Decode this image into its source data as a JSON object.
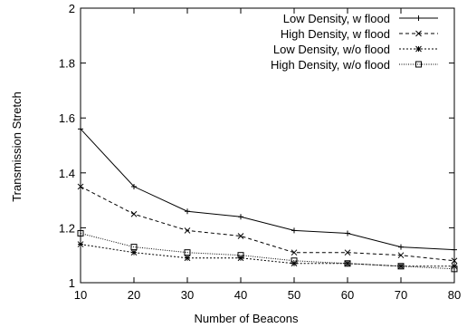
{
  "chart_data": {
    "type": "line",
    "title": "",
    "xlabel": "Number of Beacons",
    "ylabel": "Transmission Stretch",
    "xlim": [
      10,
      80
    ],
    "ylim": [
      1,
      2
    ],
    "x_ticks": [
      10,
      20,
      30,
      40,
      50,
      60,
      70,
      80
    ],
    "y_ticks": [
      "1",
      "1.2",
      "1.4",
      "1.6",
      "1.8",
      "2"
    ],
    "grid": false,
    "legend_position": "top-right",
    "x": [
      10,
      20,
      30,
      40,
      50,
      60,
      70,
      80
    ],
    "series": [
      {
        "name": "Low Density, w flood",
        "marker": "plus",
        "dash": "solid",
        "values": [
          1.56,
          1.35,
          1.26,
          1.24,
          1.19,
          1.18,
          1.13,
          1.12
        ]
      },
      {
        "name": "High Density, w flood",
        "marker": "cross",
        "dash": "dashed",
        "values": [
          1.35,
          1.25,
          1.19,
          1.17,
          1.11,
          1.11,
          1.1,
          1.08
        ]
      },
      {
        "name": "Low Density, w/o flood",
        "marker": "star",
        "dash": "dotted",
        "values": [
          1.14,
          1.11,
          1.09,
          1.09,
          1.07,
          1.07,
          1.06,
          1.06
        ]
      },
      {
        "name": "High Density, w/o flood",
        "marker": "square",
        "dash": "fine-dotted",
        "values": [
          1.18,
          1.13,
          1.11,
          1.1,
          1.08,
          1.07,
          1.06,
          1.05
        ]
      }
    ]
  }
}
